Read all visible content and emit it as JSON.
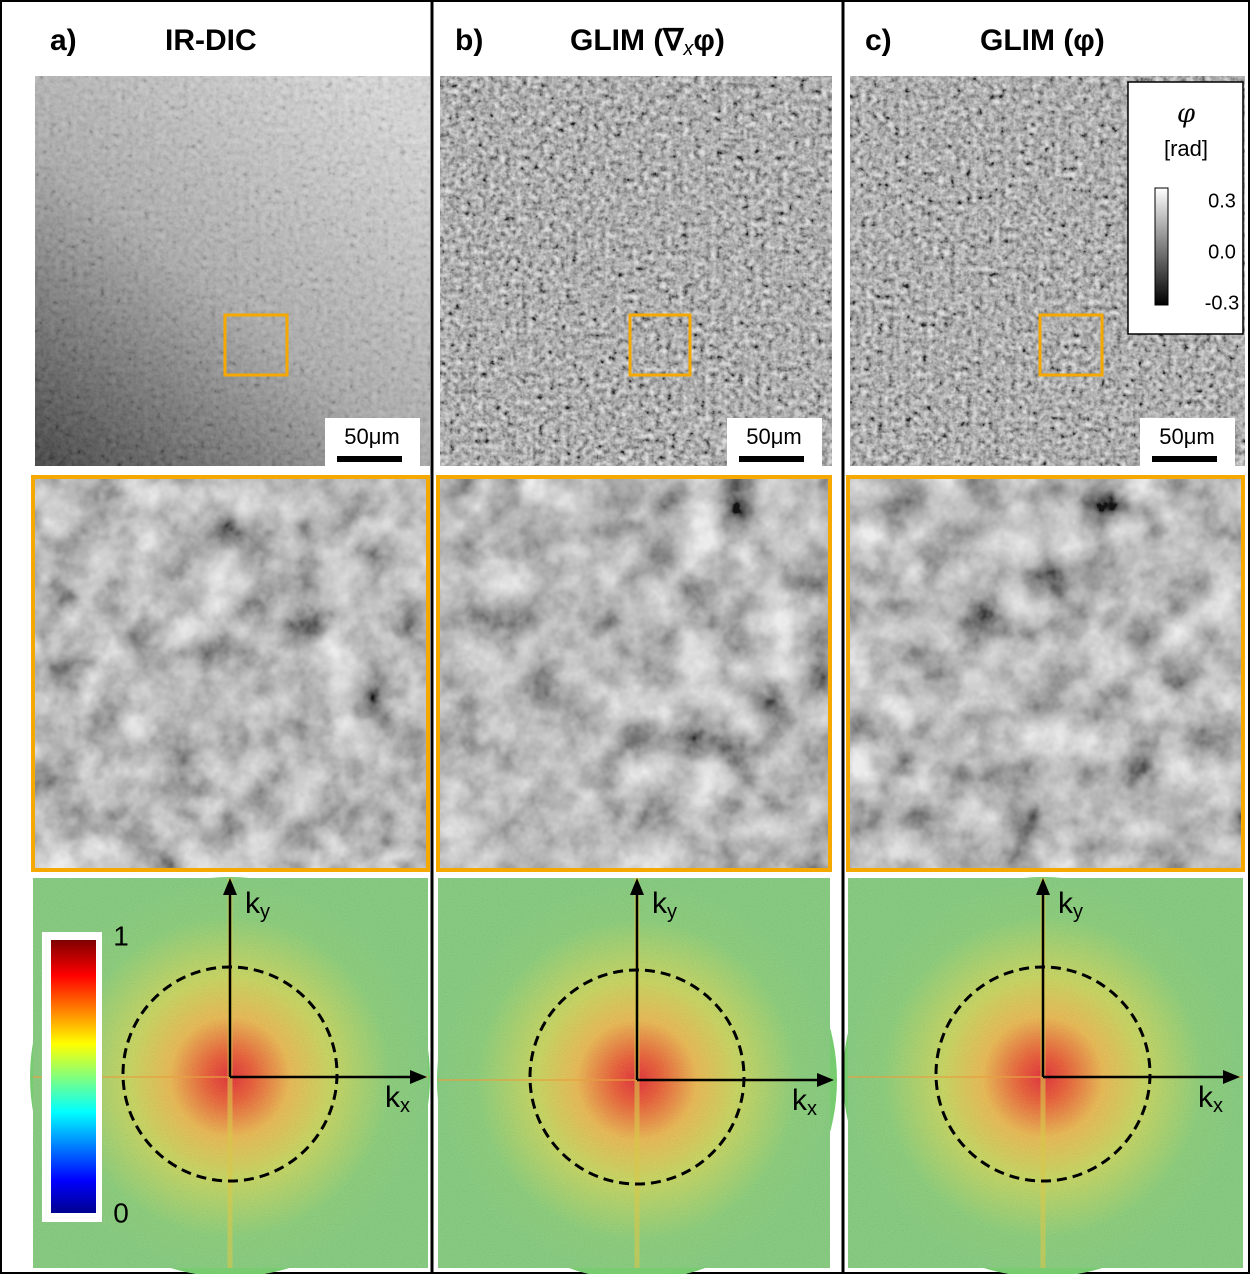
{
  "panels": [
    {
      "label": "a)",
      "title": [
        "IR-DIC"
      ],
      "scale_bar": "50μm",
      "ky": [
        "k",
        "y"
      ],
      "kx": [
        "k",
        "x"
      ]
    },
    {
      "label": "b)",
      "title": [
        "GLIM (∇",
        "x",
        "φ)"
      ],
      "scale_bar": "50μm",
      "ky": [
        "k",
        "y"
      ],
      "kx": [
        "k",
        "x"
      ]
    },
    {
      "label": "c)",
      "title": [
        "GLIM (φ)"
      ],
      "scale_bar": "50μm",
      "ky": [
        "k",
        "y"
      ],
      "kx": [
        "k",
        "x"
      ]
    }
  ],
  "phase_colorbar": {
    "symbol": "φ",
    "unit": "[rad]",
    "ticks": [
      "0.3",
      "0.0",
      "-0.3"
    ]
  },
  "spectrum_colorbar": {
    "max": "1",
    "min": "0"
  }
}
